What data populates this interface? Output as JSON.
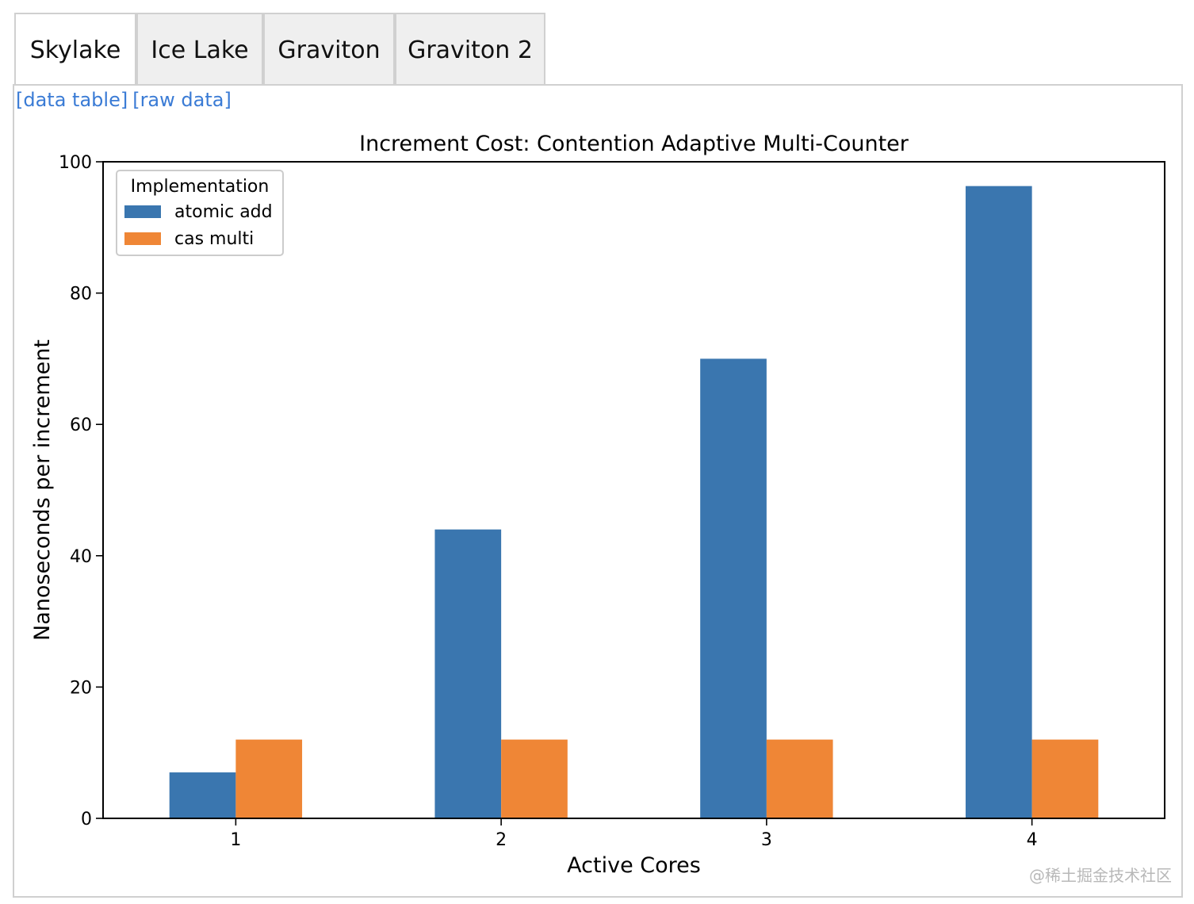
{
  "tabs": [
    {
      "label": "Skylake",
      "active": true
    },
    {
      "label": "Ice Lake",
      "active": false
    },
    {
      "label": "Graviton",
      "active": false
    },
    {
      "label": "Graviton 2",
      "active": false
    }
  ],
  "links": {
    "data_table": "[data table]",
    "raw_data": "[raw data]"
  },
  "watermark": "@稀土掘金技术社区",
  "colors": {
    "atomic_add": "#3a76af",
    "cas_multi": "#ef8636",
    "link": "#3a7bd5"
  },
  "chart_data": {
    "type": "bar",
    "title": "Increment Cost: Contention Adaptive Multi-Counter",
    "xlabel": "Active Cores",
    "ylabel": "Nanoseconds per increment",
    "categories": [
      "1",
      "2",
      "3",
      "4"
    ],
    "ylim": [
      0,
      100
    ],
    "yticks": [
      0,
      20,
      40,
      60,
      80,
      100
    ],
    "legend_title": "Implementation",
    "legend_position": "top-left",
    "grid": false,
    "series": [
      {
        "name": "atomic add",
        "values": [
          7,
          44,
          70,
          96.3
        ]
      },
      {
        "name": "cas multi",
        "values": [
          12,
          12,
          12,
          12
        ]
      }
    ]
  }
}
